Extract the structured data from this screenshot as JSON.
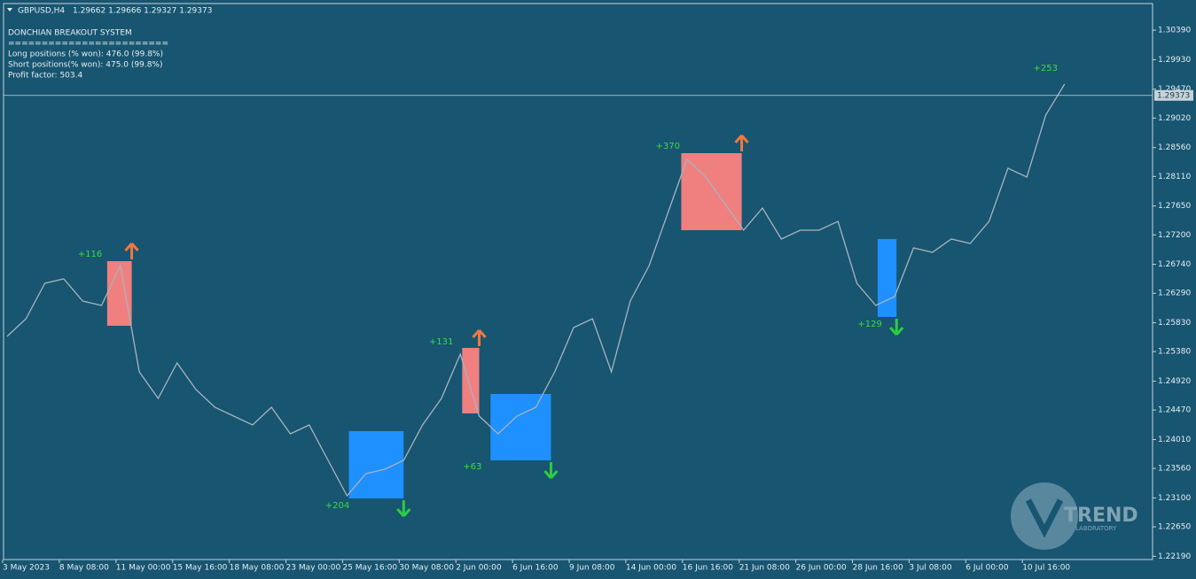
{
  "header": {
    "symbol": "GBPUSD,H4",
    "ohlc": "1.29662 1.29666 1.29327 1.29373"
  },
  "panel": {
    "title": "DONCHIAN BREAKOUT SYSTEM",
    "separator": "========================",
    "lines": [
      "Long positions (% won): 476.0 (99.8%)",
      "Short positions(% won): 475.0 (99.8%)",
      "Profit factor: 503.4"
    ]
  },
  "logo": {
    "text": "TREND",
    "sub": "LABORATORY"
  },
  "chart_data": {
    "type": "line",
    "categories": [
      "3 May 2023",
      null,
      null,
      "8 May 08:00",
      null,
      null,
      "11 May 00:00",
      null,
      null,
      "15 May 16:00",
      null,
      null,
      "18 May 08:00",
      null,
      null,
      "23 May 00:00",
      null,
      null,
      "25 May 16:00",
      null,
      null,
      "30 May 08:00",
      null,
      null,
      "2 Jun 00:00",
      null,
      null,
      "6 Jun 16:00",
      null,
      null,
      "9 Jun 08:00",
      null,
      null,
      "14 Jun 00:00",
      null,
      null,
      "16 Jun 16:00",
      null,
      null,
      "21 Jun 08:00",
      null,
      null,
      "26 Jun 00:00",
      null,
      null,
      "28 Jun 16:00",
      null,
      null,
      "3 Jul 08:00",
      null,
      null,
      "6 Jul 00:00",
      null,
      null,
      "10 Jul 16:00",
      null,
      null
    ],
    "series": [
      {
        "color": "#a9b4bb",
        "values": [
          1.25617,
          1.25893,
          1.26445,
          1.26514,
          1.26169,
          1.261,
          1.26721,
          1.25065,
          1.24651,
          1.25203,
          1.24789,
          1.24513,
          1.24375,
          1.24237,
          1.24513,
          1.24099,
          1.24237,
          1.23686,
          1.23134,
          1.23479,
          1.23548,
          1.23686,
          1.24237,
          1.24651,
          1.25341,
          1.24375,
          1.24099,
          1.24375,
          1.24513,
          1.25065,
          1.25755,
          1.25893,
          1.25065,
          1.26169,
          1.26721,
          1.27549,
          1.28377,
          1.28101,
          1.27687,
          1.27273,
          1.27618,
          1.27135,
          1.27273,
          1.27273,
          1.27411,
          1.26445,
          1.261,
          1.26238,
          1.26997,
          1.26928,
          1.27135,
          1.27066,
          1.27411,
          1.28239,
          1.28101,
          1.29066,
          1.29549
        ]
      }
    ],
    "signals": [
      {
        "kind": "sell",
        "from": 5.3,
        "to": 6.6,
        "top": 1.2679,
        "bottom": 1.25783,
        "color": "#f08080"
      },
      {
        "kind": "buy",
        "from": 18.1,
        "to": 21.0,
        "top": 1.24141,
        "bottom": 1.23092,
        "color": "#1e90ff"
      },
      {
        "kind": "sell",
        "from": 24.1,
        "to": 25.0,
        "top": 1.25438,
        "bottom": 1.24417,
        "color": "#f08080"
      },
      {
        "kind": "buy",
        "from": 25.6,
        "to": 28.8,
        "top": 1.2472,
        "bottom": 1.23686,
        "color": "#1e90ff"
      },
      {
        "kind": "sell",
        "from": 35.7,
        "to": 38.9,
        "top": 1.28473,
        "bottom": 1.27273,
        "color": "#f08080"
      },
      {
        "kind": "buy",
        "from": 46.1,
        "to": 47.1,
        "top": 1.27135,
        "bottom": 1.25921,
        "color": "#1e90ff"
      }
    ],
    "annotations": [
      {
        "text": "+116",
        "at": 4.4,
        "price": 1.269
      },
      {
        "text": "+204",
        "at": 17.5,
        "price": 1.22982
      },
      {
        "text": "+131",
        "at": 23.0,
        "price": 1.25534
      },
      {
        "text": "+63",
        "at": 24.8,
        "price": 1.23589
      },
      {
        "text": "+370",
        "at": 35.0,
        "price": 1.28584
      },
      {
        "text": "+129",
        "at": 45.7,
        "price": 1.2581
      },
      {
        "text": "+253",
        "at": 55.0,
        "price": 1.29798
      }
    ],
    "last_price": 1.29373,
    "ylim": [
      1.2214,
      1.3086
    ],
    "yticks": [
      {
        "value": 1.3039,
        "label": "1.30390"
      },
      {
        "value": 1.2993,
        "label": "1.29930"
      },
      {
        "value": 1.2947,
        "label": "1.29470"
      },
      {
        "value": 1.2902,
        "label": "1.29020"
      },
      {
        "value": 1.2856,
        "label": "1.28560"
      },
      {
        "value": 1.2811,
        "label": "1.28110"
      },
      {
        "value": 1.2765,
        "label": "1.27650"
      },
      {
        "value": 1.272,
        "label": "1.27200"
      },
      {
        "value": 1.2674,
        "label": "1.26740"
      },
      {
        "value": 1.2629,
        "label": "1.26290"
      },
      {
        "value": 1.2583,
        "label": "1.25830"
      },
      {
        "value": 1.2538,
        "label": "1.25380"
      },
      {
        "value": 1.2492,
        "label": "1.24920"
      },
      {
        "value": 1.2447,
        "label": "1.24470"
      },
      {
        "value": 1.2401,
        "label": "1.24010"
      },
      {
        "value": 1.2356,
        "label": "1.23560"
      },
      {
        "value": 1.231,
        "label": "1.23100"
      },
      {
        "value": 1.2265,
        "label": "1.22650"
      },
      {
        "value": 1.2219,
        "label": "1.22190"
      }
    ]
  }
}
